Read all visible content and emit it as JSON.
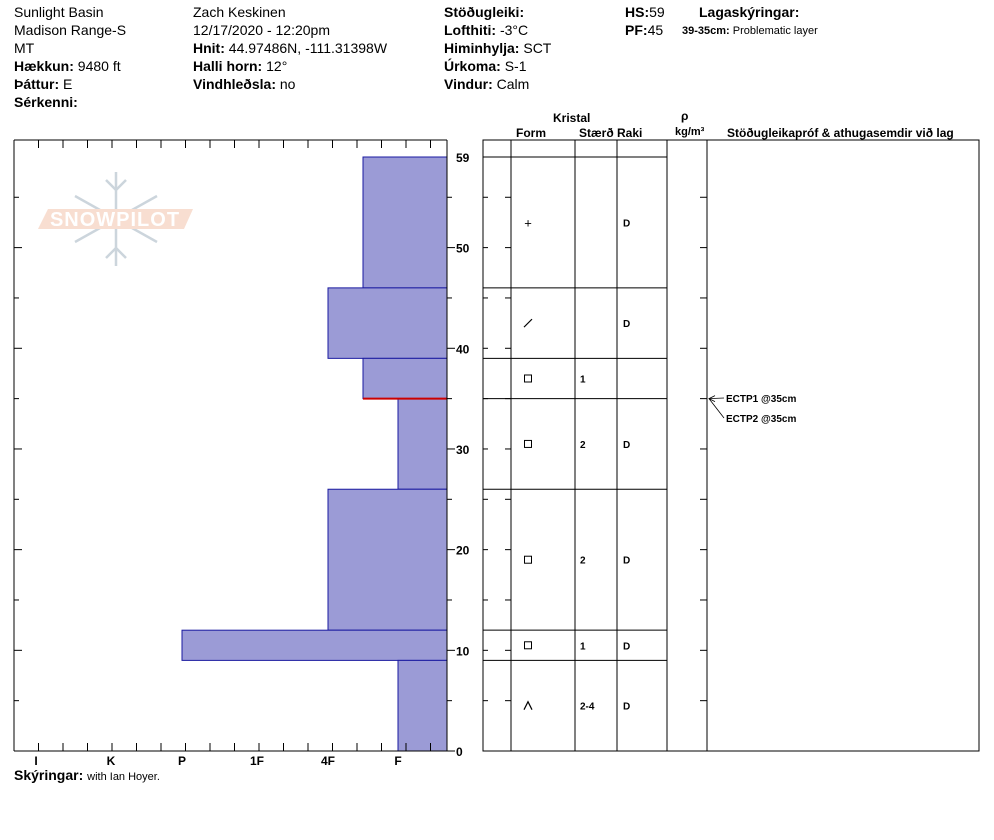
{
  "header": {
    "col1": {
      "location": "Sunlight Basin",
      "range": "Madison Range-S",
      "state": "MT",
      "elevation_label": "Hækkun:",
      "elevation_value": "9480 ft",
      "aspect_label": "Þáttur:",
      "aspect_value": "E",
      "features_label": "Sérkenni:"
    },
    "col2": {
      "observer": "Zach Keskinen",
      "datetime": "12/17/2020 - 12:20pm",
      "coords_label": "Hnit:",
      "coords_value": "44.97486N, -111.31398W",
      "slope_label": "Halli horn:",
      "slope_value": "12°",
      "wind_loading_label": "Vindhleðsla:",
      "wind_loading_value": "no"
    },
    "col3": {
      "stability_label": "Stöðugleiki:",
      "air_temp_label": "Lofthiti:",
      "air_temp_value": "-3°C",
      "sky_label": "Himinhylja:",
      "sky_value": "SCT",
      "precip_label": "Úrkoma:",
      "precip_value": "S-1",
      "wind_label": "Vindur:",
      "wind_value": "Calm"
    },
    "col4": {
      "hs_label": "HS:",
      "hs_value": "59",
      "pf_label": "PF:",
      "pf_value": "45"
    },
    "legend": {
      "title": "Lagaskýringar:",
      "entry_key": "39-35cm:",
      "entry_value": "Problematic layer"
    }
  },
  "logo": {
    "text": "SNOWPILOT"
  },
  "table_header": {
    "crystal": "Kristal",
    "form": "Form",
    "size": "Stærð",
    "moisture": "Raki",
    "rho": "ρ",
    "density_unit": "kg/m³",
    "tests": "Stöðugleikapróf & athugasemdir við lag"
  },
  "comments_label": "Skýringar:",
  "comments_value": "with Ian Hoyer.",
  "chart_data": {
    "type": "bar",
    "ylim": [
      0,
      59
    ],
    "y_ticks": [
      "0",
      "10",
      "20",
      "30",
      "40",
      "50",
      "59"
    ],
    "hardness_scale": [
      "I",
      "K",
      "P",
      "1F",
      "4F",
      "F"
    ],
    "layers": [
      {
        "top": 59,
        "bottom": 46,
        "hardness_level": 1.5
      },
      {
        "top": 46,
        "bottom": 39,
        "hardness_level": 2.0
      },
      {
        "top": 39,
        "bottom": 35,
        "hardness_level": 1.5
      },
      {
        "top": 35,
        "bottom": 26,
        "hardness_level": 1.0
      },
      {
        "top": 26,
        "bottom": 12,
        "hardness_level": 2.0
      },
      {
        "top": 12,
        "bottom": 9,
        "hardness_level": 4.0
      },
      {
        "top": 9,
        "bottom": 0,
        "hardness_level": 1.0
      }
    ],
    "problematic_layer_line": 35,
    "problematic_color": "#cc0000",
    "bar_color": "#9b9bd6",
    "bar_edge_color": "#1a1aa0"
  },
  "layer_rows": [
    {
      "top": 59,
      "bottom": 46,
      "form": "+",
      "size": "",
      "moisture": "D"
    },
    {
      "top": 46,
      "bottom": 39,
      "form": "/",
      "size": "",
      "moisture": "D"
    },
    {
      "top": 39,
      "bottom": 35,
      "form": "□",
      "size": "1",
      "moisture": ""
    },
    {
      "top": 35,
      "bottom": 26,
      "form": "□",
      "size": "2",
      "moisture": "D"
    },
    {
      "top": 26,
      "bottom": 12,
      "form": "□",
      "size": "2",
      "moisture": "D"
    },
    {
      "top": 12,
      "bottom": 9,
      "form": "□",
      "size": "1",
      "moisture": "D"
    },
    {
      "top": 9,
      "bottom": 0,
      "form": "∧",
      "size": "2-4",
      "moisture": "D"
    }
  ],
  "tests": [
    {
      "label": "ECTP1 @35cm",
      "depth": 35
    },
    {
      "label": "ECTP2 @35cm",
      "depth": 35
    }
  ]
}
